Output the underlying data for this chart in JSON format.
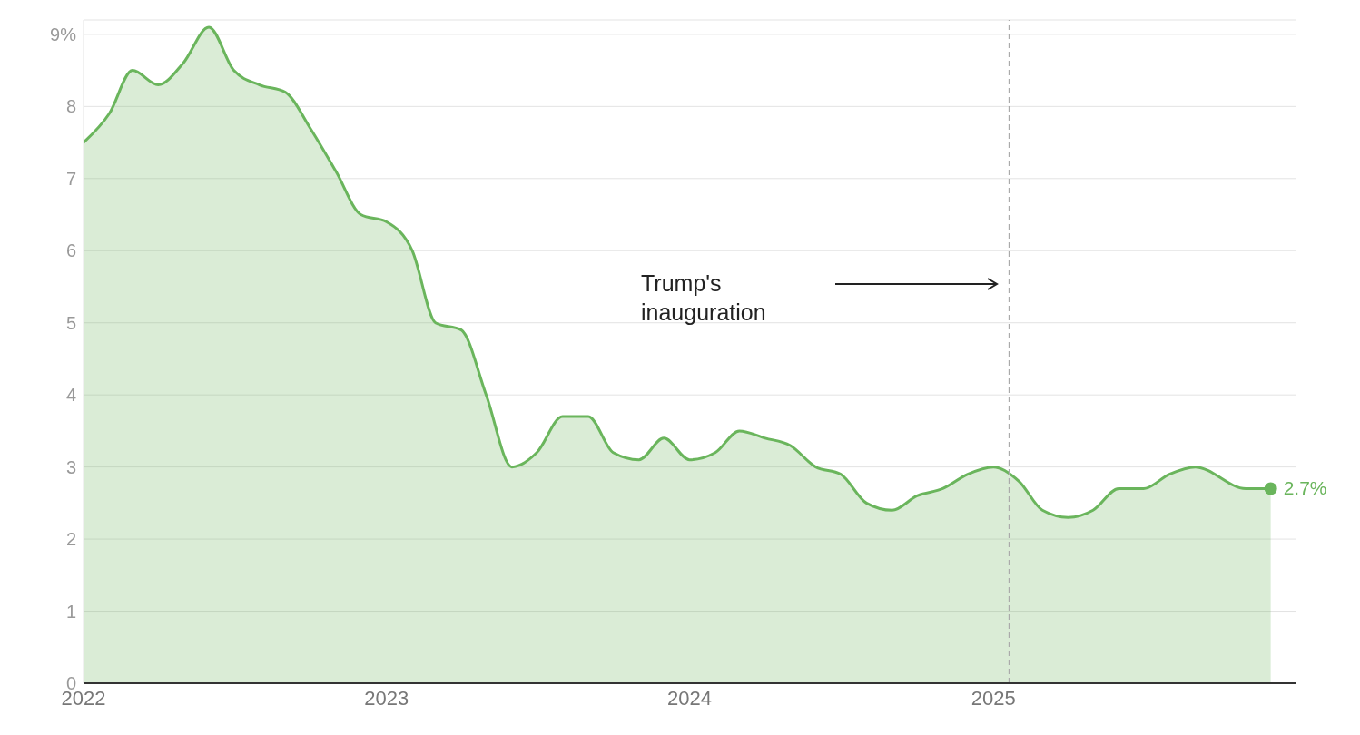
{
  "chart_data": {
    "type": "area",
    "annotations": [
      "Trump's inauguration"
    ],
    "x": [
      "2022-01",
      "2022-02",
      "2022-03",
      "2022-04",
      "2022-05",
      "2022-06",
      "2022-07",
      "2022-08",
      "2022-09",
      "2022-10",
      "2022-11",
      "2022-12",
      "2023-01",
      "2023-02",
      "2023-03",
      "2023-04",
      "2023-05",
      "2023-06",
      "2023-07",
      "2023-08",
      "2023-09",
      "2023-10",
      "2023-11",
      "2023-12",
      "2024-01",
      "2024-02",
      "2024-03",
      "2024-04",
      "2024-05",
      "2024-06",
      "2024-07",
      "2024-08",
      "2024-09",
      "2024-10",
      "2024-11",
      "2024-12",
      "2025-01",
      "2025-02",
      "2025-03",
      "2025-04",
      "2025-05",
      "2025-06",
      "2025-07",
      "2025-08",
      "2025-09",
      "2025-11",
      "2025-12"
    ],
    "series": [
      {
        "color": "#6ab55c",
        "values": [
          7.5,
          7.9,
          8.5,
          8.3,
          8.6,
          9.1,
          8.5,
          8.3,
          8.2,
          7.7,
          7.1,
          6.5,
          6.4,
          6.0,
          5.0,
          4.9,
          4.0,
          3.0,
          3.2,
          3.7,
          3.7,
          3.2,
          3.1,
          3.4,
          3.1,
          3.2,
          3.5,
          3.4,
          3.3,
          3.0,
          2.9,
          2.5,
          2.4,
          2.6,
          2.7,
          2.9,
          3.0,
          2.8,
          2.4,
          2.3,
          2.4,
          2.7,
          2.7,
          2.9,
          3.0,
          2.7,
          2.7
        ],
        "value_labels": [
          null,
          null,
          null,
          null,
          null,
          null,
          null,
          null,
          null,
          null,
          null,
          null,
          null,
          null,
          null,
          null,
          null,
          null,
          null,
          null,
          null,
          null,
          null,
          null,
          null,
          null,
          null,
          null,
          null,
          null,
          null,
          null,
          null,
          null,
          null,
          null,
          null,
          null,
          null,
          null,
          null,
          null,
          null,
          null,
          null,
          null,
          "2.7%"
        ]
      }
    ],
    "xlim": [
      "2022-01",
      "2026-01"
    ],
    "xticks": [
      {
        "value": "2022-01",
        "label": "2022"
      },
      {
        "value": "2023-01",
        "label": "2023"
      },
      {
        "value": "2024-01",
        "label": "2024"
      },
      {
        "value": "2025-01",
        "label": "2025"
      }
    ],
    "ylim": [
      0,
      9.2
    ],
    "yticks": [
      0,
      1,
      2,
      3,
      4,
      5,
      6,
      7,
      8,
      {
        "value": 9,
        "label": "9%"
      }
    ],
    "grid": "y",
    "line_style": "solid",
    "ref_lines": [
      {
        "axis": "x",
        "value": "2025-01-20",
        "color": "#aaaaaa",
        "line_style": "dashed"
      }
    ]
  }
}
